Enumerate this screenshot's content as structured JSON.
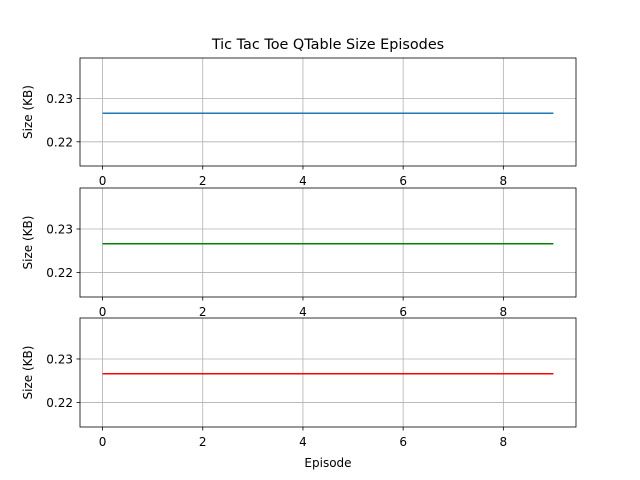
{
  "chart_data": {
    "type": "line",
    "title": "Tic Tac Toe QTable Size Episodes",
    "xlabel": "Episode",
    "grid": true,
    "subplots": [
      {
        "ylabel": "Size (KB)",
        "xlim": [
          -0.45,
          9.45
        ],
        "ylim": [
          0.2144,
          0.2394
        ],
        "xticks": [
          0,
          2,
          4,
          6,
          8
        ],
        "yticks": [
          0.22,
          0.23
        ],
        "series": [
          {
            "color": "#1f77b4",
            "x": [
              0,
              1,
              2,
              3,
              4,
              5,
              6,
              7,
              8,
              9
            ],
            "y": [
              0.2266,
              0.2266,
              0.2266,
              0.2266,
              0.2266,
              0.2266,
              0.2266,
              0.2266,
              0.2266,
              0.2266
            ]
          }
        ]
      },
      {
        "ylabel": "Size (KB)",
        "xlim": [
          -0.45,
          9.45
        ],
        "ylim": [
          0.2144,
          0.2394
        ],
        "xticks": [
          0,
          2,
          4,
          6,
          8
        ],
        "yticks": [
          0.22,
          0.23
        ],
        "series": [
          {
            "color": "#008000",
            "x": [
              0,
              1,
              2,
              3,
              4,
              5,
              6,
              7,
              8,
              9
            ],
            "y": [
              0.2266,
              0.2266,
              0.2266,
              0.2266,
              0.2266,
              0.2266,
              0.2266,
              0.2266,
              0.2266,
              0.2266
            ]
          }
        ]
      },
      {
        "ylabel": "Size (KB)",
        "xlim": [
          -0.45,
          9.45
        ],
        "ylim": [
          0.2144,
          0.2394
        ],
        "xticks": [
          0,
          2,
          4,
          6,
          8
        ],
        "yticks": [
          0.22,
          0.23
        ],
        "series": [
          {
            "color": "#ff0000",
            "x": [
              0,
              1,
              2,
              3,
              4,
              5,
              6,
              7,
              8,
              9
            ],
            "y": [
              0.2266,
              0.2266,
              0.2266,
              0.2266,
              0.2266,
              0.2266,
              0.2266,
              0.2266,
              0.2266,
              0.2266
            ]
          }
        ]
      }
    ]
  }
}
